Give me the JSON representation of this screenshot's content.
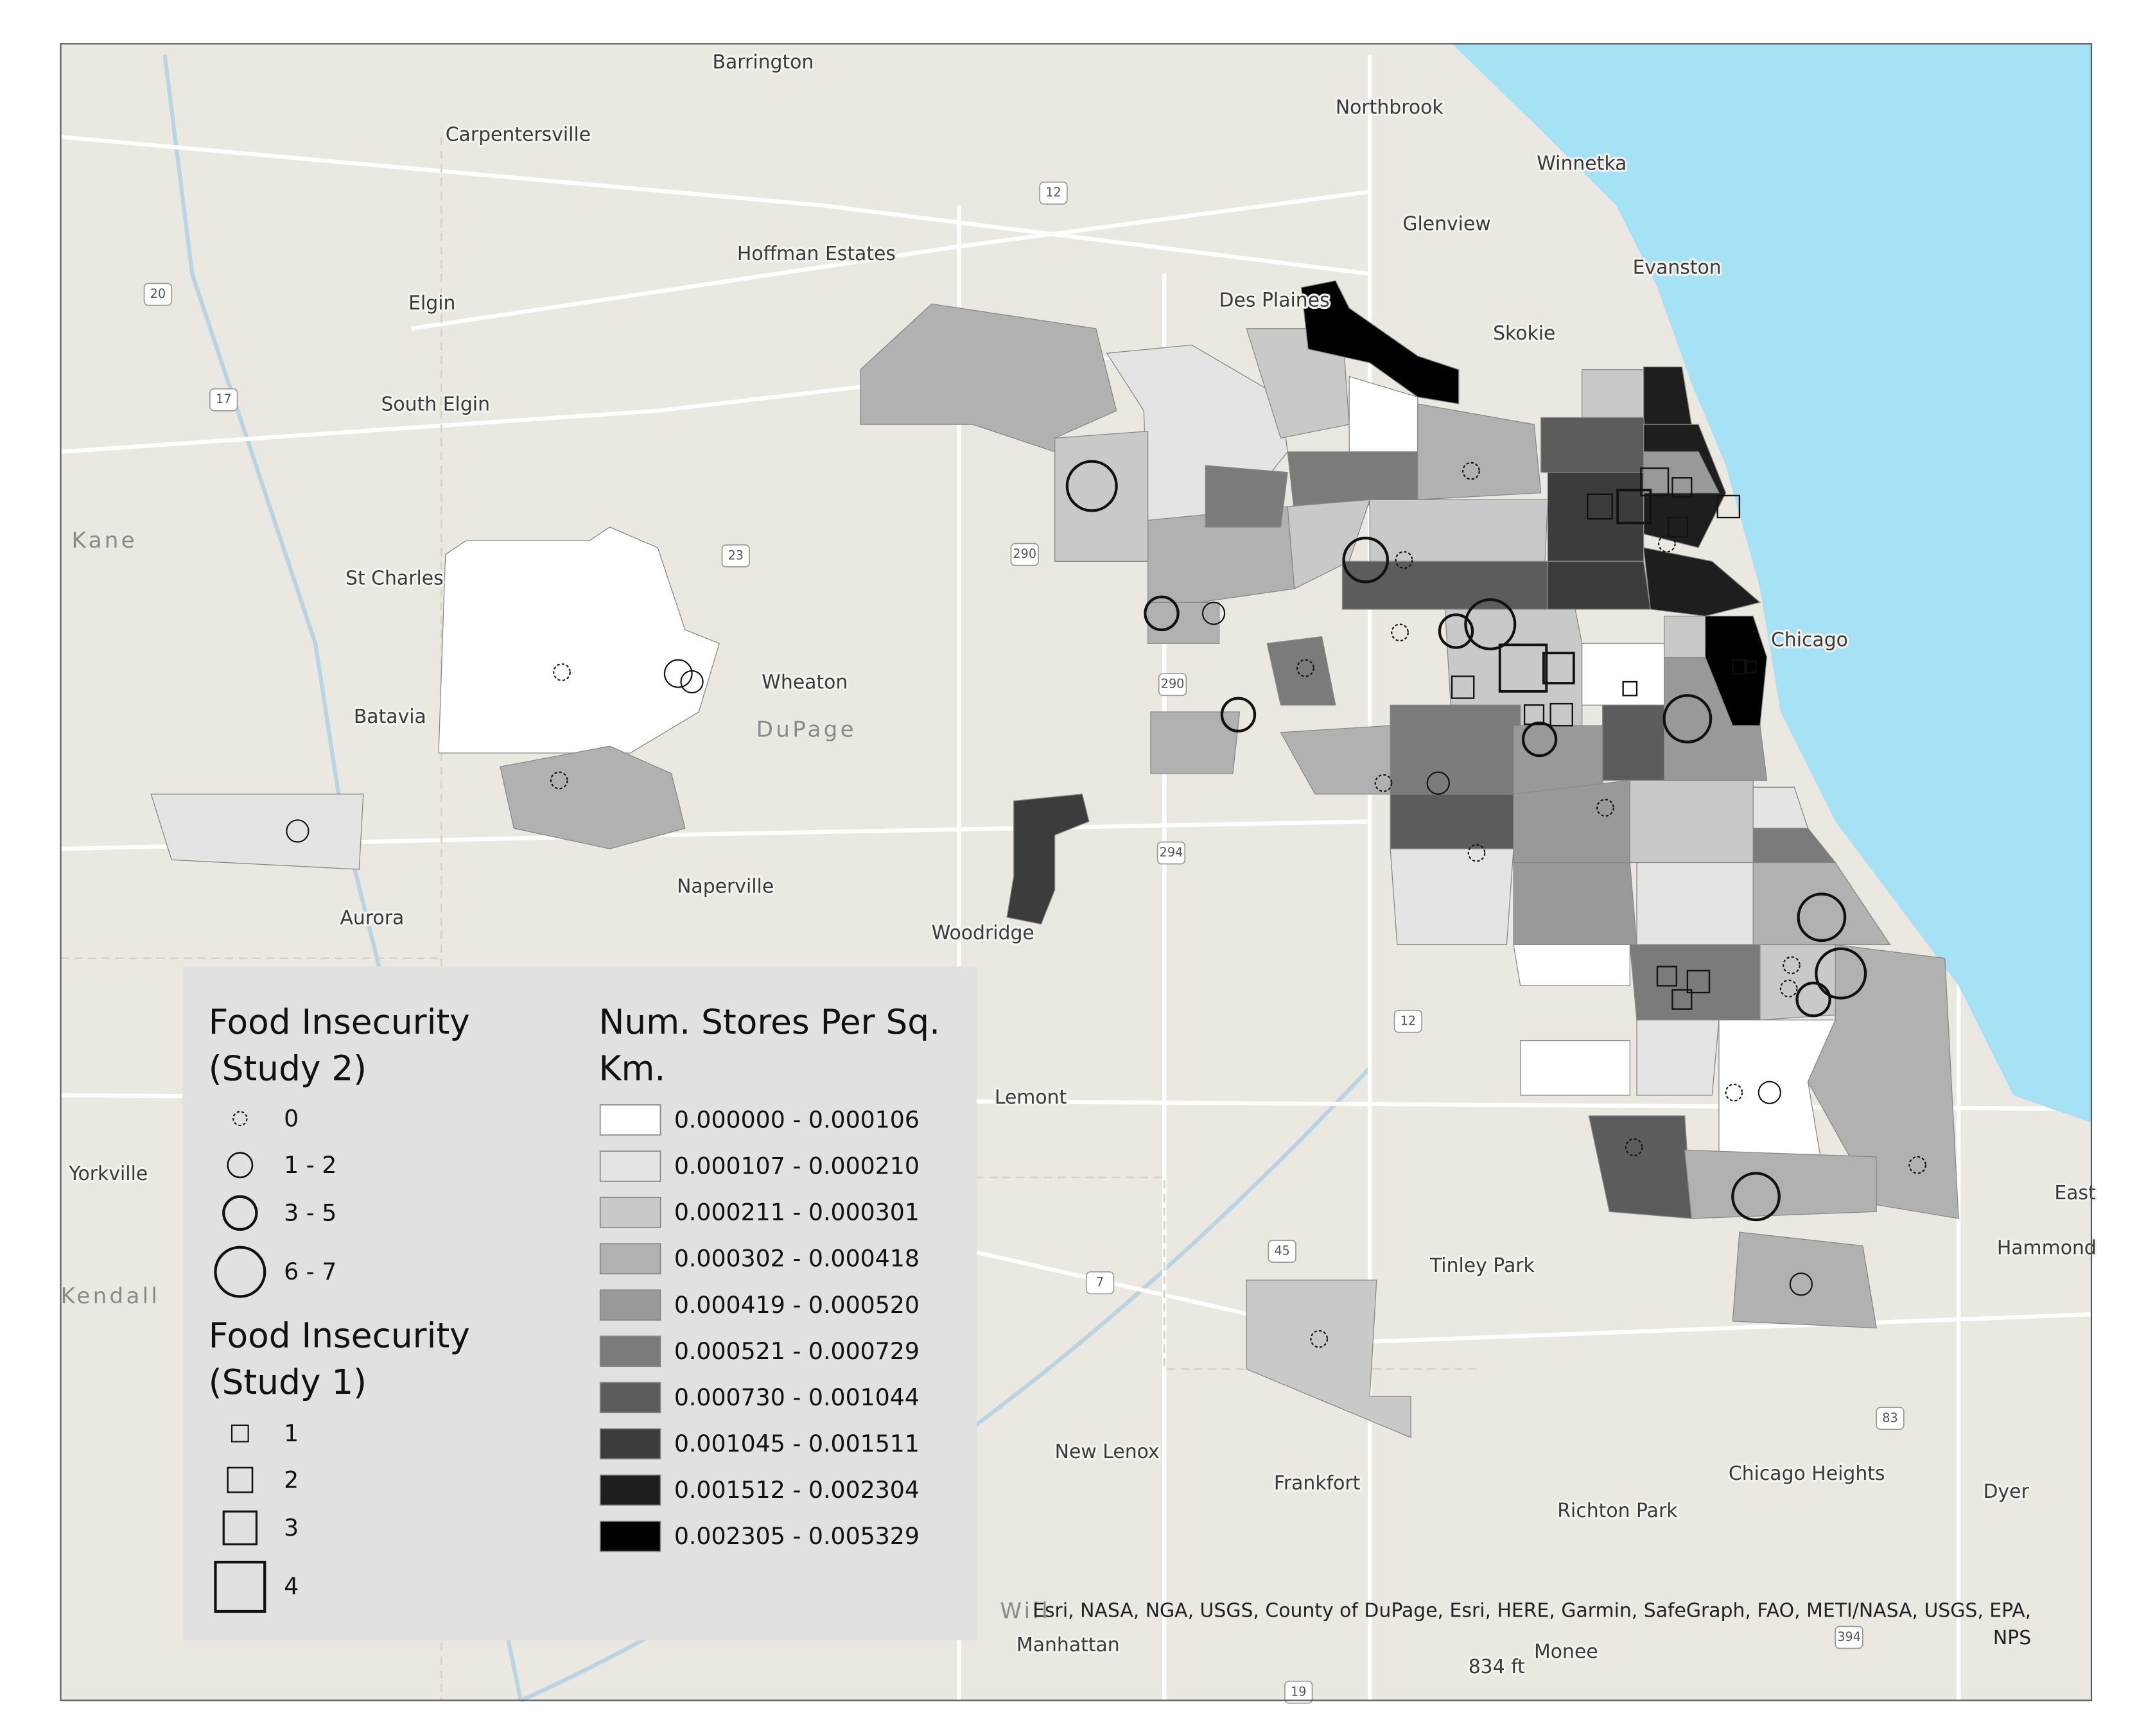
{
  "places": [
    "Barrington",
    "Carpentersville",
    "Northbrook",
    "Winnetka",
    "Glenview",
    "Hoffman Estates",
    "Evanston",
    "Elgin",
    "Des Plaines",
    "Skokie",
    "South Elgin",
    "St Charles",
    "Wheaton",
    "Batavia",
    "Chicago",
    "Naperville",
    "Aurora",
    "Woodridge",
    "Lemont",
    "Yorkville",
    "Tinley Park",
    "New Lenox",
    "Frankfort",
    "Chicago Heights",
    "Richton Park",
    "Dyer",
    "Hammond",
    "East",
    "Manhattan",
    "Monee",
    "834 ft"
  ],
  "regions": [
    "Kane",
    "DuPage",
    "Kendall",
    "Will"
  ],
  "road_shields": [
    "12",
    "20",
    "17",
    "23",
    "290",
    "290",
    "294",
    "12",
    "45",
    "7",
    "83",
    "394",
    "19"
  ],
  "legend": {
    "study2": {
      "title": [
        "Food Insecurity",
        "(Study 2)"
      ],
      "items": [
        "0",
        "1 - 2",
        "3 - 5",
        "6 - 7"
      ]
    },
    "study1": {
      "title": [
        "Food Insecurity",
        "(Study 1)"
      ],
      "items": [
        "1",
        "2",
        "3",
        "4"
      ]
    },
    "stores": {
      "title": [
        "Num. Stores Per Sq.",
        "Km."
      ],
      "classes": [
        "0.000000 - 0.000106",
        "0.000107 - 0.000210",
        "0.000211 - 0.000301",
        "0.000302 - 0.000418",
        "0.000419 - 0.000520",
        "0.000521 - 0.000729",
        "0.000730 - 0.001044",
        "0.001045 - 0.001511",
        "0.001512 - 0.002304",
        "0.002305 - 0.005329"
      ],
      "colors": [
        "#ffffff",
        "#e4e4e4",
        "#c9c9c9",
        "#b1b1b1",
        "#999999",
        "#7b7b7b",
        "#5c5c5c",
        "#3c3c3c",
        "#1e1e1e",
        "#000000"
      ]
    }
  },
  "attribution": [
    "Esri, NASA, NGA, USGS, County of DuPage, Esri, HERE, Garmin, SafeGraph, FAO, METI/NASA, USGS, EPA,",
    "NPS"
  ]
}
